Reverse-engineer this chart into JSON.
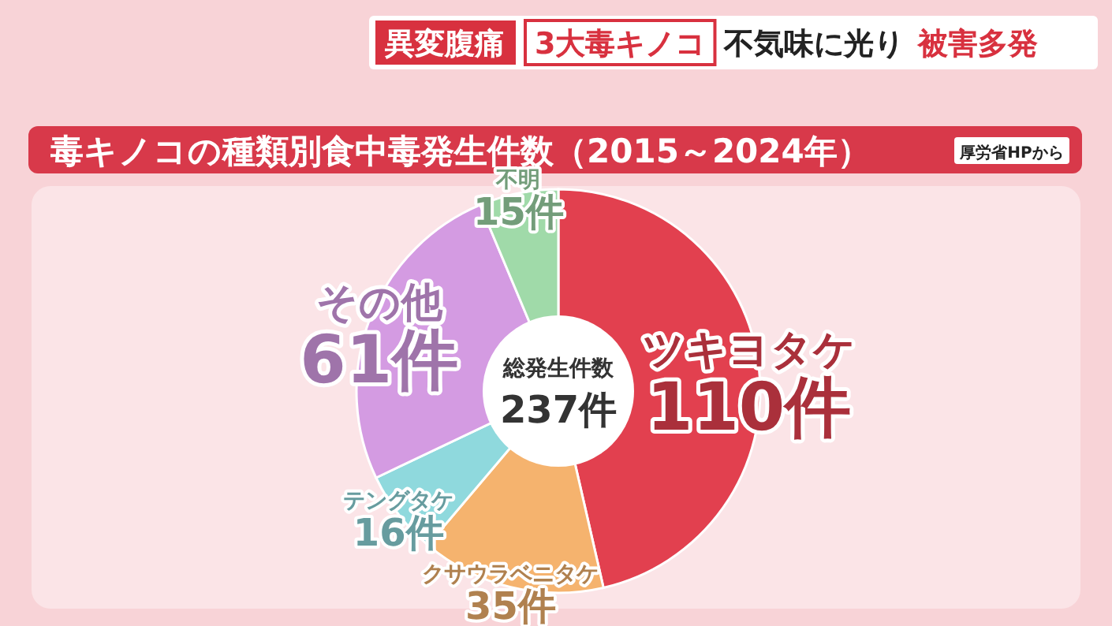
{
  "chart_data": {
    "type": "donut",
    "title": "毒キノコの種類別食中毒発生件数（2015～2024年）",
    "categories": [
      "ツキヨタケ",
      "クサウラベニタケ",
      "テングタケ",
      "その他",
      "不明"
    ],
    "values": [
      110,
      35,
      16,
      61,
      15
    ],
    "value_labels": [
      "110件",
      "35件",
      "16件",
      "61件",
      "15件"
    ],
    "colors": [
      "#e2404f",
      "#f5b36e",
      "#8fd9dd",
      "#d49be2",
      "#a0daa9"
    ],
    "annotations": [
      "異変腹痛",
      "3大毒キノコ",
      "不気味に光り",
      "被害多発",
      "厚労省HPから",
      "総発生件数",
      "237件"
    ]
  }
}
